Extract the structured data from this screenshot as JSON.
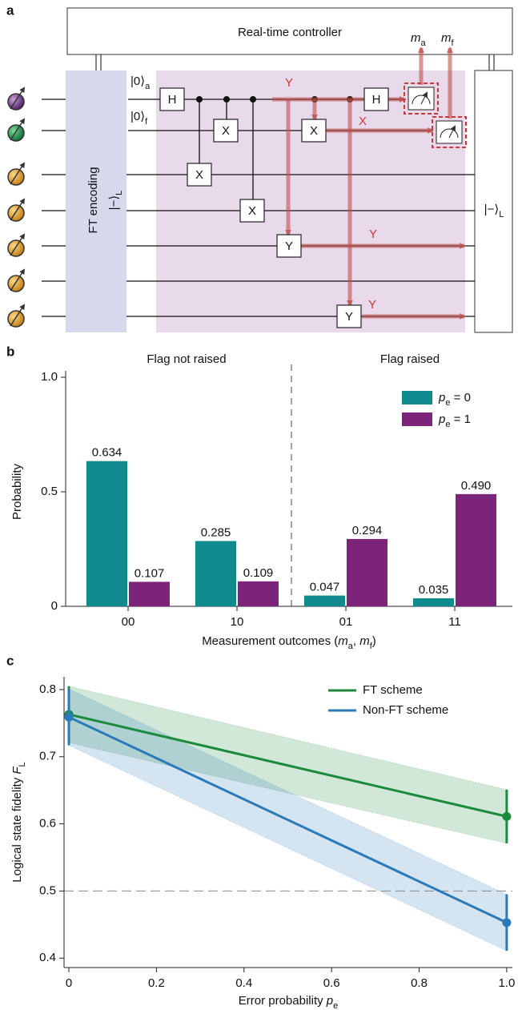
{
  "panel_labels": [
    "a",
    "b",
    "c"
  ],
  "diagram": {
    "controller": "Real-time controller",
    "encoding": "FT encoding",
    "encoded_state": [
      "|−⟩",
      "L"
    ],
    "output_state": [
      "|−⟩",
      "L"
    ],
    "ancilla_init": [
      "|0⟩",
      "a"
    ],
    "flag_init": [
      "|0⟩",
      "f"
    ],
    "gates": [
      "H",
      "X",
      "X",
      "X",
      "Y",
      "X",
      "Y",
      "H"
    ],
    "errors": [
      "Y",
      "X",
      "Y",
      "Y"
    ],
    "measurements": [
      [
        "m",
        "a"
      ],
      [
        "m",
        "f"
      ]
    ]
  },
  "chart_data": [
    {
      "type": "bar",
      "categories": [
        "00",
        "10",
        "01",
        "11"
      ],
      "series": [
        {
          "name": [
            "p",
            "e",
            " = 0"
          ],
          "color": "#0f8b8d",
          "values": [
            0.634,
            0.285,
            0.047,
            0.035
          ],
          "value_labels": [
            "0.634",
            "0.285",
            "0.047",
            "0.035"
          ]
        },
        {
          "name": [
            "p",
            "e",
            " = 1"
          ],
          "color": "#7b2479",
          "values": [
            0.107,
            0.109,
            0.294,
            0.49
          ],
          "value_labels": [
            "0.107",
            "0.109",
            "0.294",
            "0.490"
          ]
        }
      ],
      "ylim": [
        0,
        1
      ],
      "yticks": [
        0,
        0.5,
        {
          "value": 1,
          "label": "1.0"
        }
      ],
      "ylabel": "Probability",
      "xlabel": [
        "Measurement outcomes (",
        "m",
        "a",
        ", ",
        "m",
        "f",
        ")"
      ],
      "annotations": [
        "Flag not raised",
        "Flag raised"
      ],
      "legend": "upper right"
    },
    {
      "type": "line",
      "x": [
        0,
        1
      ],
      "series": [
        {
          "name": "FT scheme",
          "color": "#1b8a3c",
          "values": [
            0.763,
            0.611
          ],
          "errors": [
            0.042,
            0.04
          ]
        },
        {
          "name": "Non-FT scheme",
          "color": "#2a7ab9",
          "values": [
            0.759,
            0.453
          ],
          "errors": [
            0.042,
            0.042
          ]
        }
      ],
      "xlim": [
        -0.011,
        1.013
      ],
      "xticks": [
        0,
        0.2,
        0.4,
        0.6,
        0.8,
        {
          "value": 1,
          "label": "1.0"
        }
      ],
      "ylim": [
        0.386,
        0.819
      ],
      "yticks": [
        0.4,
        0.5,
        0.6,
        0.7,
        0.8
      ],
      "hline": 0.5,
      "ylabel": [
        "Logical state fidelity ",
        "F",
        "L"
      ],
      "xlabel": [
        "Error probability ",
        "p",
        "e"
      ],
      "legend": "upper right"
    }
  ]
}
